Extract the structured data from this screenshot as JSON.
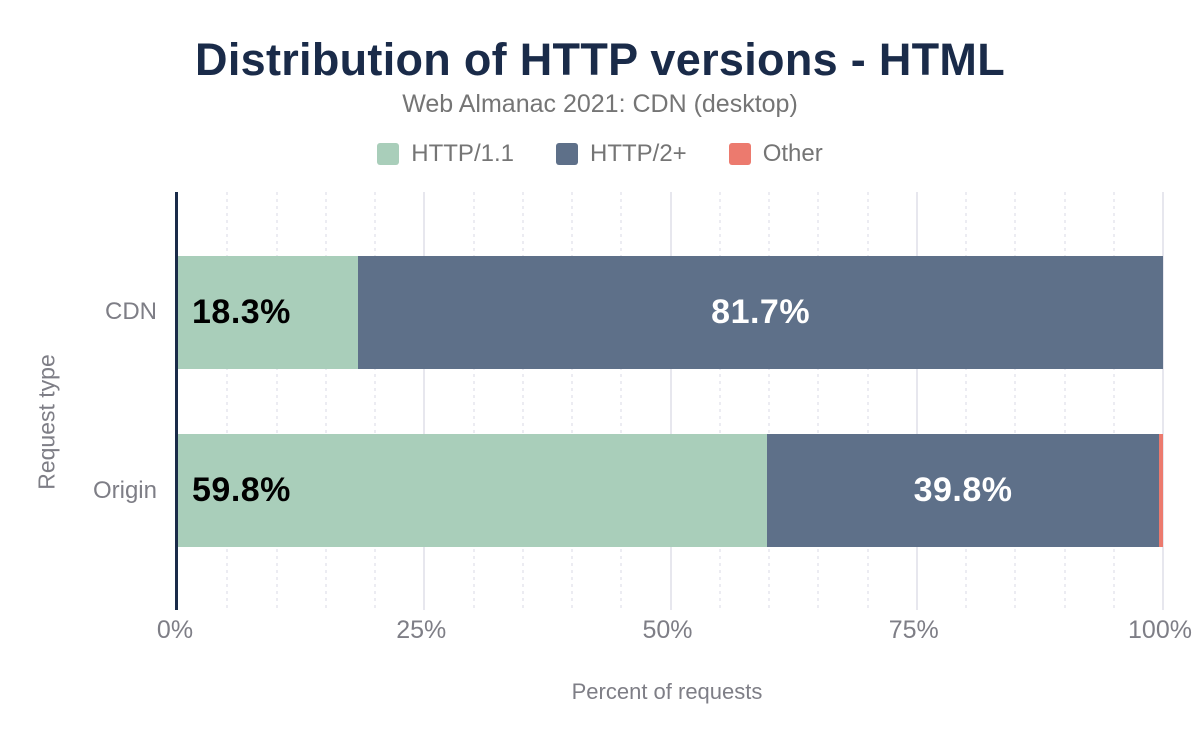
{
  "chart_data": {
    "type": "bar",
    "variant": "horizontal-stacked",
    "title": "Distribution of HTTP versions - HTML",
    "subtitle": "Web Almanac 2021: CDN (desktop)",
    "categories": [
      "CDN",
      "Origin"
    ],
    "series": [
      {
        "name": "HTTP/1.1",
        "color": "#a9ceba",
        "label_color": "#000000",
        "label_align": "left",
        "values": [
          18.3,
          59.8
        ]
      },
      {
        "name": "HTTP/2+",
        "color": "#5e7089",
        "label_color": "#ffffff",
        "label_align": "center",
        "values": [
          81.7,
          39.8
        ]
      },
      {
        "name": "Other",
        "color": "#ec7a6e",
        "label_color": "#ffffff",
        "label_align": "center",
        "values": [
          0,
          0.4
        ]
      }
    ],
    "xlabel": "Percent of requests",
    "ylabel": "Request type",
    "xlim": [
      0,
      100
    ],
    "x_ticks": [
      {
        "value": 0,
        "label": "0%"
      },
      {
        "value": 25,
        "label": "25%"
      },
      {
        "value": 50,
        "label": "50%"
      },
      {
        "value": 75,
        "label": "75%"
      },
      {
        "value": 100,
        "label": "100%"
      }
    ],
    "grid": {
      "shown": true,
      "minor_step": 5,
      "major_step": 25
    },
    "legend_position": "top"
  },
  "colors": {
    "title_text": "#1a2b49",
    "axis_line": "#1a2b49",
    "subtitle_text": "#757575",
    "muted_text": "#7e7e86",
    "background": "#ffffff",
    "grid_minor": "#ececf2",
    "grid_major": "#e7e7ee",
    "bar_label_dark": "#000000",
    "bar_label_light": "#ffffff"
  }
}
